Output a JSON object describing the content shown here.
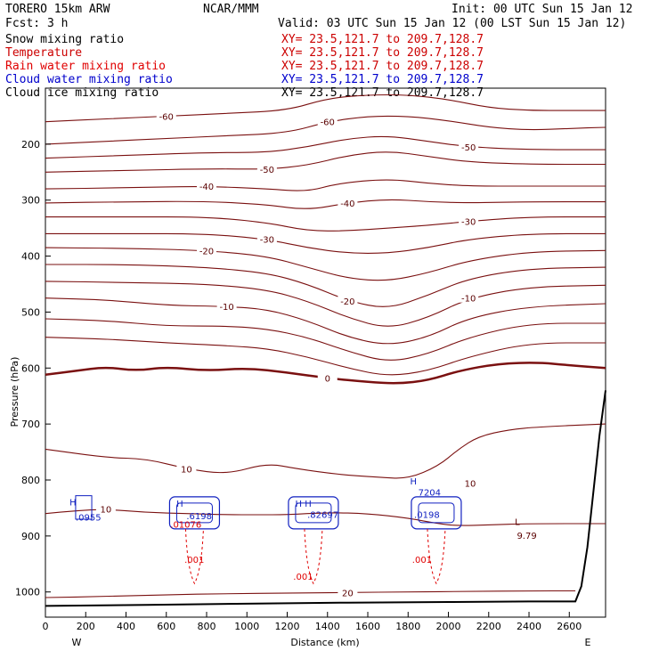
{
  "header": {
    "model": "TORERO  15km ARW",
    "center": "NCAR/MMM",
    "init": "Init: 00 UTC Sun 15 Jan 12",
    "fcst": "Fcst:    3 h",
    "valid": "Valid: 03 UTC Sun 15 Jan 12 (00 LST Sun 15 Jan 12)"
  },
  "fields": [
    {
      "name": "Snow mixing ratio",
      "xy": "XY=  23.5,121.7 to 209.7,128.7",
      "color": "#000000",
      "xycolor": "#cc0000"
    },
    {
      "name": "Temperature",
      "xy": "XY=  23.5,121.7 to 209.7,128.7",
      "color": "#cc0000",
      "xycolor": "#cc0000"
    },
    {
      "name": "Rain water mixing ratio",
      "xy": "XY=  23.5,121.7 to 209.7,128.7",
      "color": "#e00000",
      "xycolor": "#cc0000"
    },
    {
      "name": "Cloud water mixing ratio",
      "xy": "XY=  23.5,121.7 to 209.7,128.7",
      "color": "#0000cc",
      "xycolor": "#0000cc"
    },
    {
      "name": "Cloud ice mixing ratio",
      "xy": "XY=  23.5,121.7 to 209.7,128.7",
      "color": "#000000",
      "xycolor": "#000000"
    }
  ],
  "chart_data": {
    "type": "contour-cross-section",
    "xlabel": "Distance (km)",
    "ylabel": "Pressure (hPa)",
    "x_ticks": [
      0,
      200,
      400,
      600,
      800,
      1000,
      1200,
      1400,
      1600,
      1800,
      2000,
      2200,
      2400,
      2600
    ],
    "x_tick_labels": [
      "0",
      "200",
      "400",
      "600",
      "800",
      "1000",
      "1200",
      "1400",
      "1600",
      "1800",
      "2000",
      "2200",
      "2400",
      "2600"
    ],
    "y_ticks": [
      200,
      300,
      400,
      500,
      600,
      700,
      800,
      900,
      1000
    ],
    "y_tick_labels": [
      "200",
      "300",
      "400",
      "500",
      "600",
      "700",
      "800",
      "900",
      "1000"
    ],
    "xlim": [
      0,
      2780
    ],
    "ylim": [
      1045,
      100
    ],
    "endpoint_labels": {
      "west": "W",
      "east": "E"
    },
    "temperature_contours": [
      {
        "value": -60,
        "label": "-60",
        "points": [
          [
            0,
            160
          ],
          [
            300,
            155
          ],
          [
            600,
            150
          ],
          [
            900,
            145
          ],
          [
            1200,
            140
          ],
          [
            1400,
            118
          ],
          [
            1600,
            112
          ],
          [
            1800,
            112
          ],
          [
            2000,
            120
          ],
          [
            2200,
            135
          ],
          [
            2400,
            140
          ],
          [
            2600,
            140
          ],
          [
            2780,
            140
          ]
        ]
      },
      {
        "value": -60,
        "label": "-60",
        "points": [
          [
            0,
            200
          ],
          [
            300,
            195
          ],
          [
            600,
            190
          ],
          [
            900,
            185
          ],
          [
            1200,
            180
          ],
          [
            1400,
            160
          ],
          [
            1600,
            150
          ],
          [
            1800,
            150
          ],
          [
            2000,
            158
          ],
          [
            2200,
            170
          ],
          [
            2400,
            175
          ],
          [
            2600,
            172
          ],
          [
            2780,
            170
          ]
        ]
      },
      {
        "value": -50,
        "label": "-50",
        "points": [
          [
            0,
            225
          ],
          [
            400,
            220
          ],
          [
            800,
            215
          ],
          [
            1100,
            215
          ],
          [
            1300,
            205
          ],
          [
            1500,
            190
          ],
          [
            1700,
            185
          ],
          [
            1900,
            195
          ],
          [
            2100,
            205
          ],
          [
            2400,
            210
          ],
          [
            2780,
            210
          ]
        ]
      },
      {
        "value": -50,
        "label": "-50",
        "points": [
          [
            0,
            250
          ],
          [
            400,
            247
          ],
          [
            800,
            244
          ],
          [
            1100,
            245
          ],
          [
            1300,
            238
          ],
          [
            1500,
            220
          ],
          [
            1700,
            212
          ],
          [
            1900,
            222
          ],
          [
            2100,
            232
          ],
          [
            2400,
            236
          ],
          [
            2780,
            236
          ]
        ]
      },
      {
        "value": -40,
        "label": "-40",
        "points": [
          [
            0,
            280
          ],
          [
            400,
            278
          ],
          [
            800,
            275
          ],
          [
            1100,
            280
          ],
          [
            1300,
            285
          ],
          [
            1450,
            270
          ],
          [
            1700,
            262
          ],
          [
            1900,
            270
          ],
          [
            2100,
            275
          ],
          [
            2400,
            275
          ],
          [
            2780,
            275
          ]
        ]
      },
      {
        "value": -40,
        "label": "-40",
        "points": [
          [
            0,
            305
          ],
          [
            400,
            303
          ],
          [
            800,
            302
          ],
          [
            1100,
            308
          ],
          [
            1300,
            318
          ],
          [
            1500,
            305
          ],
          [
            1700,
            298
          ],
          [
            1900,
            303
          ],
          [
            2100,
            305
          ],
          [
            2400,
            303
          ],
          [
            2780,
            303
          ]
        ]
      },
      {
        "value": -30,
        "label": "-30",
        "points": [
          [
            0,
            330
          ],
          [
            400,
            330
          ],
          [
            800,
            330
          ],
          [
            1100,
            340
          ],
          [
            1300,
            355
          ],
          [
            1500,
            355
          ],
          [
            1700,
            350
          ],
          [
            1900,
            345
          ],
          [
            2100,
            338
          ],
          [
            2400,
            330
          ],
          [
            2780,
            330
          ]
        ]
      },
      {
        "value": -30,
        "label": "-30",
        "points": [
          [
            0,
            360
          ],
          [
            400,
            360
          ],
          [
            800,
            360
          ],
          [
            1100,
            370
          ],
          [
            1300,
            385
          ],
          [
            1500,
            395
          ],
          [
            1700,
            395
          ],
          [
            1900,
            385
          ],
          [
            2100,
            370
          ],
          [
            2400,
            360
          ],
          [
            2780,
            360
          ]
        ]
      },
      {
        "value": -20,
        "label": "-20",
        "points": [
          [
            0,
            385
          ],
          [
            400,
            386
          ],
          [
            800,
            390
          ],
          [
            1100,
            400
          ],
          [
            1300,
            420
          ],
          [
            1500,
            440
          ],
          [
            1700,
            445
          ],
          [
            1900,
            430
          ],
          [
            2100,
            408
          ],
          [
            2400,
            392
          ],
          [
            2780,
            390
          ]
        ]
      },
      {
        "value": -20,
        "label": "-20",
        "points": [
          [
            0,
            415
          ],
          [
            400,
            415
          ],
          [
            800,
            420
          ],
          [
            1100,
            430
          ],
          [
            1300,
            450
          ],
          [
            1500,
            480
          ],
          [
            1700,
            495
          ],
          [
            1900,
            470
          ],
          [
            2100,
            440
          ],
          [
            2400,
            422
          ],
          [
            2780,
            420
          ]
        ]
      },
      {
        "value": -10,
        "label": "-10",
        "points": [
          [
            0,
            445
          ],
          [
            400,
            447
          ],
          [
            800,
            450
          ],
          [
            1100,
            460
          ],
          [
            1300,
            480
          ],
          [
            1500,
            510
          ],
          [
            1700,
            530
          ],
          [
            1900,
            510
          ],
          [
            2100,
            475
          ],
          [
            2400,
            455
          ],
          [
            2780,
            452
          ]
        ]
      },
      {
        "value": -10,
        "label": "-10",
        "points": [
          [
            0,
            475
          ],
          [
            300,
            478
          ],
          [
            600,
            488
          ],
          [
            900,
            490
          ],
          [
            1100,
            495
          ],
          [
            1300,
            515
          ],
          [
            1500,
            545
          ],
          [
            1700,
            560
          ],
          [
            1900,
            545
          ],
          [
            2100,
            510
          ],
          [
            2400,
            490
          ],
          [
            2780,
            485
          ]
        ]
      },
      {
        "value": 0,
        "label": "",
        "points": [
          [
            0,
            512
          ],
          [
            300,
            515
          ],
          [
            600,
            525
          ],
          [
            900,
            525
          ],
          [
            1100,
            530
          ],
          [
            1300,
            545
          ],
          [
            1500,
            570
          ],
          [
            1700,
            590
          ],
          [
            1900,
            575
          ],
          [
            2100,
            545
          ],
          [
            2400,
            520
          ],
          [
            2780,
            520
          ]
        ]
      },
      {
        "value": 0,
        "label": "",
        "points": [
          [
            0,
            545
          ],
          [
            300,
            548
          ],
          [
            600,
            555
          ],
          [
            900,
            560
          ],
          [
            1100,
            565
          ],
          [
            1300,
            580
          ],
          [
            1500,
            600
          ],
          [
            1700,
            615
          ],
          [
            1900,
            605
          ],
          [
            2100,
            580
          ],
          [
            2400,
            555
          ],
          [
            2780,
            555
          ]
        ]
      },
      {
        "value": 0,
        "label": "0",
        "bold": true,
        "points": [
          [
            0,
            612
          ],
          [
            150,
            605
          ],
          [
            300,
            598
          ],
          [
            450,
            605
          ],
          [
            600,
            598
          ],
          [
            800,
            605
          ],
          [
            1000,
            600
          ],
          [
            1200,
            608
          ],
          [
            1400,
            618
          ],
          [
            1600,
            625
          ],
          [
            1750,
            628
          ],
          [
            1900,
            622
          ],
          [
            2050,
            605
          ],
          [
            2250,
            592
          ],
          [
            2450,
            590
          ],
          [
            2600,
            595
          ],
          [
            2780,
            600
          ]
        ]
      },
      {
        "value": 10,
        "label": "10",
        "points": [
          [
            0,
            745
          ],
          [
            300,
            760
          ],
          [
            500,
            762
          ],
          [
            700,
            780
          ],
          [
            900,
            790
          ],
          [
            1100,
            770
          ],
          [
            1250,
            780
          ],
          [
            1450,
            790
          ],
          [
            1650,
            795
          ],
          [
            1800,
            798
          ],
          [
            1950,
            775
          ],
          [
            2050,
            745
          ],
          [
            2150,
            722
          ],
          [
            2300,
            710
          ],
          [
            2450,
            705
          ],
          [
            2780,
            700
          ]
        ]
      },
      {
        "value": 10,
        "label": "10",
        "points": [
          [
            0,
            860
          ],
          [
            150,
            855
          ],
          [
            300,
            852
          ],
          [
            500,
            858
          ],
          [
            700,
            860
          ],
          [
            900,
            862
          ],
          [
            1050,
            862
          ],
          [
            1200,
            862
          ],
          [
            1400,
            858
          ],
          [
            1600,
            860
          ],
          [
            1800,
            868
          ],
          [
            1950,
            878
          ],
          [
            2050,
            882
          ],
          [
            2200,
            880
          ],
          [
            2400,
            878
          ],
          [
            2780,
            878
          ]
        ]
      },
      {
        "value": 20,
        "label": "20",
        "points": [
          [
            0,
            1010
          ],
          [
            300,
            1008
          ],
          [
            600,
            1005
          ],
          [
            900,
            1003
          ],
          [
            1200,
            1002
          ],
          [
            1500,
            1001
          ],
          [
            1800,
            1000
          ],
          [
            2100,
            999
          ],
          [
            2400,
            998
          ],
          [
            2630,
            998
          ]
        ]
      }
    ],
    "extra_labels": [
      {
        "text": "10",
        "x": 2080,
        "y": 812
      },
      {
        "text": "L",
        "x": 2330,
        "y": 880
      },
      {
        "text": "9.79",
        "x": 2340,
        "y": 905
      }
    ],
    "rain_labels": [
      {
        "text": ".01076",
        "x": 620,
        "y": 885
      },
      {
        "text": ".001",
        "x": 690,
        "y": 948
      },
      {
        "text": ".001",
        "x": 1230,
        "y": 978
      },
      {
        "text": ".001",
        "x": 1820,
        "y": 948
      }
    ],
    "cloud_labels": [
      {
        "text": "H",
        "x": 120,
        "y": 845
      },
      {
        "text": ".0955",
        "x": 150,
        "y": 872
      },
      {
        "text": "H",
        "x": 650,
        "y": 848
      },
      {
        "text": ".6198",
        "x": 700,
        "y": 870
      },
      {
        "text": "H H",
        "x": 1240,
        "y": 848
      },
      {
        "text": ".82697",
        "x": 1300,
        "y": 868
      },
      {
        "text": "H",
        "x": 1810,
        "y": 808
      },
      {
        "text": "7204",
        "x": 1850,
        "y": 828
      },
      {
        "text": ".0198",
        "x": 1830,
        "y": 868
      }
    ],
    "terrain": {
      "label": "surface",
      "points": [
        [
          0,
          1025
        ],
        [
          500,
          1023
        ],
        [
          1000,
          1021
        ],
        [
          1500,
          1019
        ],
        [
          2000,
          1018
        ],
        [
          2400,
          1017
        ],
        [
          2630,
          1017
        ],
        [
          2660,
          990
        ],
        [
          2690,
          920
        ],
        [
          2720,
          820
        ],
        [
          2750,
          720
        ],
        [
          2780,
          640
        ]
      ]
    }
  }
}
